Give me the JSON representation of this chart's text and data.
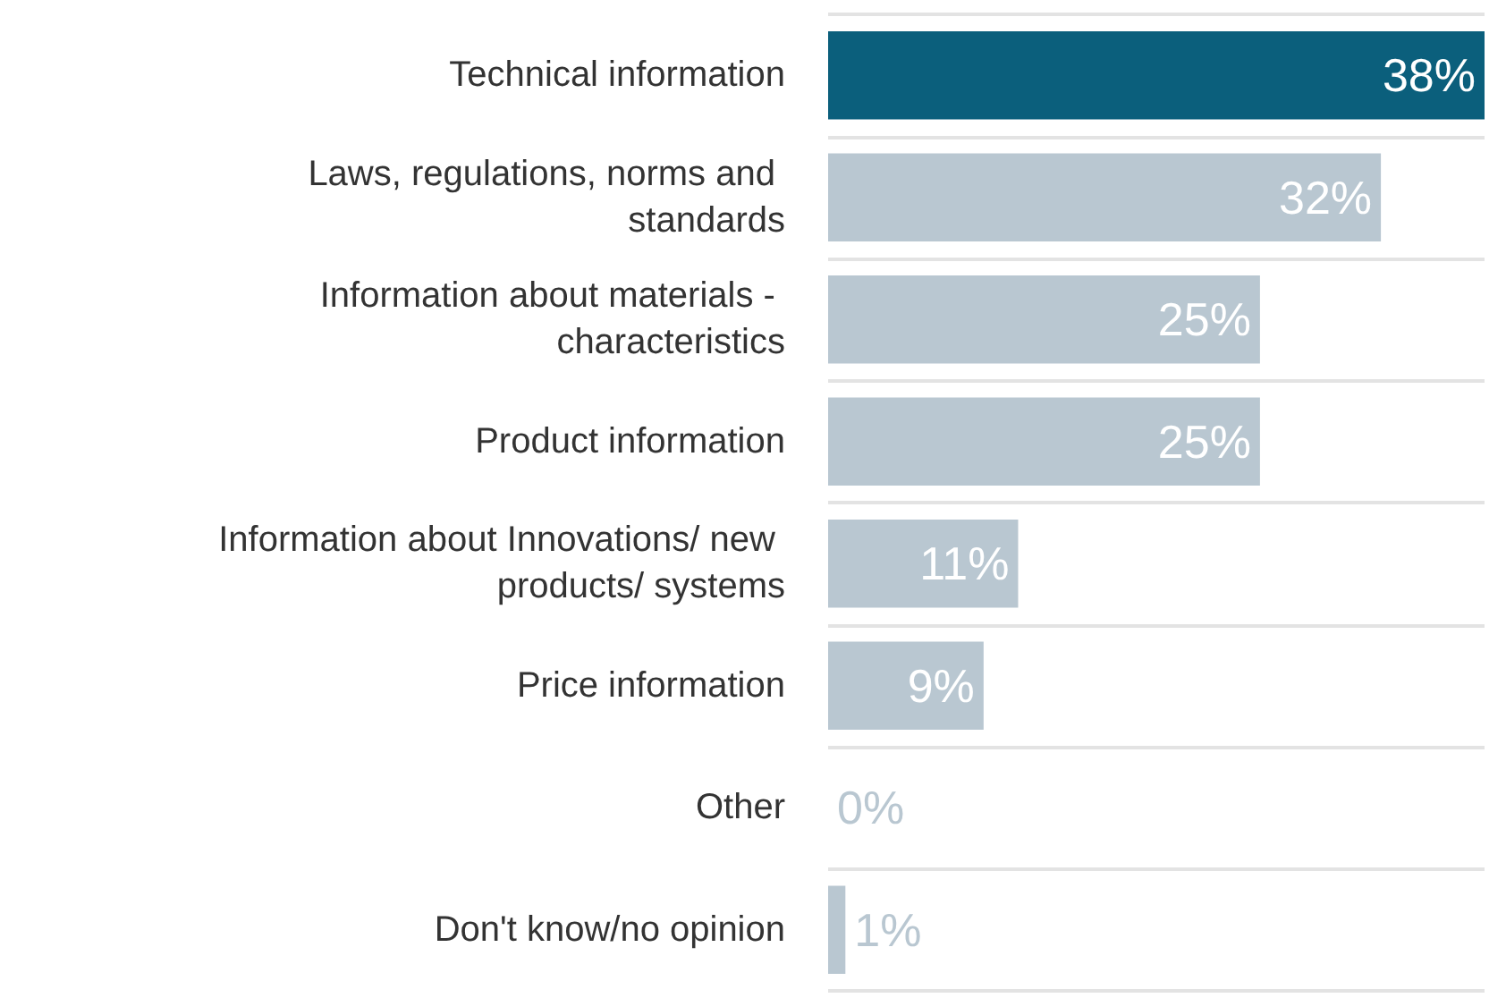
{
  "chart_data": {
    "type": "bar",
    "orientation": "horizontal",
    "categories": [
      "Technical information",
      "Laws, regulations, norms and standards",
      "Information about materials - characteristics",
      "Product information",
      "Information about Innovations/ new products/ systems",
      "Price information",
      "Other",
      "Don't know/no opinion"
    ],
    "values": [
      38,
      32,
      25,
      25,
      11,
      9,
      0,
      1
    ],
    "colors": [
      "#0b5f7c",
      "#b9c7d1",
      "#b9c7d1",
      "#b9c7d1",
      "#b9c7d1",
      "#b9c7d1",
      "#b9c7d1",
      "#b9c7d1"
    ],
    "value_labels": [
      "38%",
      "32%",
      "25%",
      "25%",
      "11%",
      "9%",
      "0%",
      "1%"
    ],
    "xlim": [
      0,
      38
    ],
    "tick_labels": "y",
    "grid": "y"
  }
}
